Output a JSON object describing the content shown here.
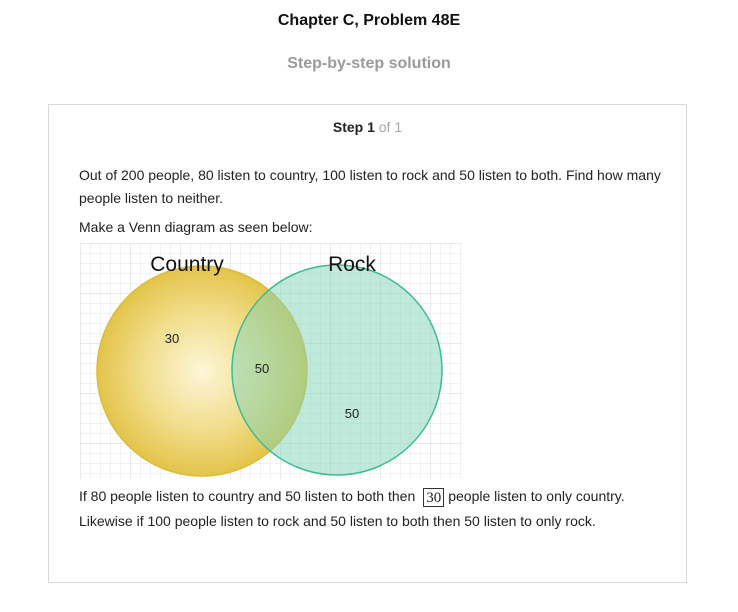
{
  "header": {
    "chapter_title": "Chapter C, Problem 48E",
    "solution_title": "Step-by-step solution"
  },
  "step": {
    "label": "Step 1",
    "of": " of 1",
    "problem_text": "Out of 200 people, 80 listen to country, 100 listen to rock and 50 listen to both. Find how many people listen to neither.",
    "instruction": "Make a Venn diagram as seen below:",
    "venn": {
      "left_set_label": "Country",
      "right_set_label": "Rock",
      "left_only_value": "30",
      "both_value": "50",
      "right_only_value": "50",
      "left_color": "#e8c94e",
      "right_color": "#7fd4b8",
      "right_border_color": "#3dbb94"
    },
    "explanation_part1": "If 80 people listen to country and 50 listen to both then",
    "answer": "30",
    "explanation_part2": "people listen to only country.",
    "explanation_line2": "Likewise if 100 people listen to rock and 50 listen to both then 50 listen to only rock."
  }
}
